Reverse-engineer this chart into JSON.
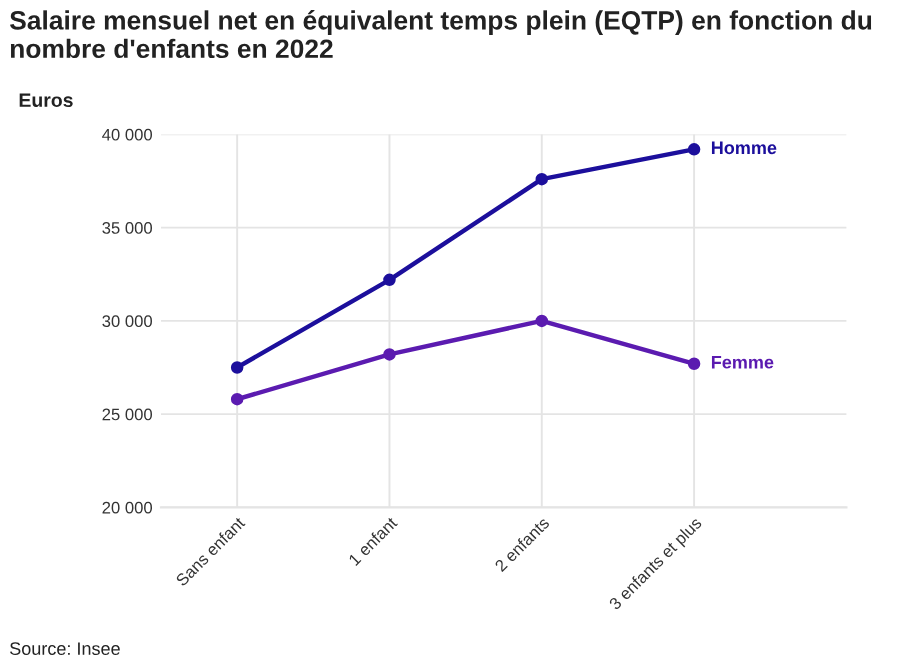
{
  "chart_data": {
    "type": "line",
    "title": "Salaire mensuel net en équivalent temps plein (EQTP) en fonction du nombre d'enfants en 2022",
    "ylabel": "Euros",
    "categories": [
      "Sans enfant",
      "1 enfant",
      "2 enfants",
      "3 enfants et plus"
    ],
    "series": [
      {
        "name": "Homme",
        "color": "#1c0f9c",
        "values": [
          27500,
          32200,
          37600,
          39200
        ]
      },
      {
        "name": "Femme",
        "color": "#5b1bb0",
        "values": [
          25800,
          28200,
          30000,
          27700
        ]
      }
    ],
    "ylim": [
      20000,
      40000
    ],
    "yticks": [
      {
        "value": 20000,
        "label": "20 000"
      },
      {
        "value": 25000,
        "label": "25 000"
      },
      {
        "value": 30000,
        "label": "30 000"
      },
      {
        "value": 35000,
        "label": "35 000"
      },
      {
        "value": 40000,
        "label": "40 000"
      }
    ],
    "grid": true,
    "marker": "circle",
    "line_style": "solid",
    "legend": false,
    "annotations": [
      "Source: Insee"
    ]
  }
}
